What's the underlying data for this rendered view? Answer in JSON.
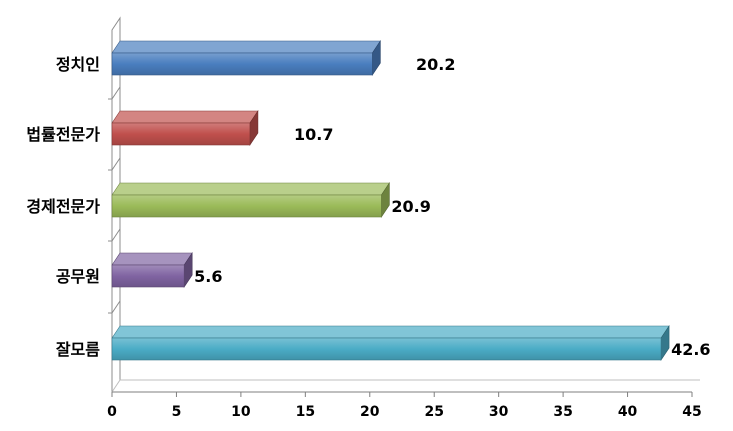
{
  "chart_data": {
    "type": "bar",
    "orientation": "horizontal",
    "categories": [
      "정치인",
      "법률전문가",
      "경제전문가",
      "공무원",
      "잘모름"
    ],
    "values": [
      20.2,
      10.7,
      20.9,
      5.6,
      42.6
    ],
    "data_labels": [
      "20.2",
      "10.7",
      "20.9",
      "5.6",
      "42.6"
    ],
    "colors": [
      "#4a7ebf",
      "#c0504d",
      "#9bbb59",
      "#8064a2",
      "#4bacc6"
    ],
    "xticks": [
      "0",
      "5",
      "10",
      "15",
      "20",
      "25",
      "30",
      "35",
      "40",
      "45"
    ],
    "xlim": [
      0,
      45
    ],
    "grid": false,
    "legend": "none",
    "title": "",
    "xlabel": "",
    "ylabel": ""
  }
}
